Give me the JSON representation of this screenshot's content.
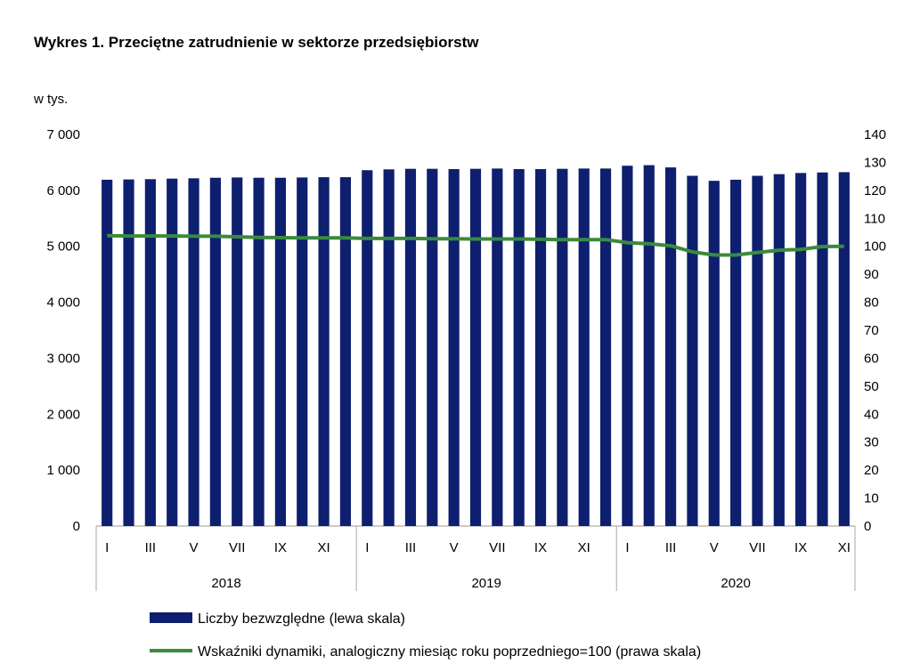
{
  "chart_data": {
    "type": "bar",
    "title": "Wykres 1. Przeciętne zatrudnienie w sektorze przedsiębiorstw",
    "left_axis_unit": "w tys.",
    "categories": [
      "I",
      "II",
      "III",
      "IV",
      "V",
      "VI",
      "VII",
      "VIII",
      "IX",
      "X",
      "XI",
      "XII",
      "I",
      "II",
      "III",
      "IV",
      "V",
      "VI",
      "VII",
      "VIII",
      "IX",
      "X",
      "XI",
      "XII",
      "I",
      "II",
      "III",
      "IV",
      "V",
      "VI",
      "VII",
      "VIII",
      "IX",
      "X",
      "XI"
    ],
    "category_labels": [
      "I",
      "",
      "III",
      "",
      "V",
      "",
      "VII",
      "",
      "IX",
      "",
      "XI",
      "",
      "I",
      "",
      "III",
      "",
      "V",
      "",
      "VII",
      "",
      "IX",
      "",
      "XI",
      "",
      "I",
      "",
      "III",
      "",
      "V",
      "",
      "VII",
      "",
      "IX",
      "",
      "XI"
    ],
    "years": [
      {
        "label": "2018",
        "count": 12
      },
      {
        "label": "2019",
        "count": 12
      },
      {
        "label": "2020",
        "count": 11
      }
    ],
    "series": [
      {
        "name": "Liczby bezwzględne (lewa skala)",
        "type": "bar",
        "axis": "left",
        "color": "#0d1f6e",
        "values": [
          6190,
          6195,
          6200,
          6210,
          6215,
          6225,
          6230,
          6225,
          6225,
          6230,
          6235,
          6235,
          6360,
          6375,
          6385,
          6385,
          6380,
          6385,
          6390,
          6380,
          6380,
          6385,
          6390,
          6390,
          6440,
          6450,
          6410,
          6260,
          6170,
          6190,
          6260,
          6290,
          6310,
          6320,
          6325
        ]
      },
      {
        "name": "Wskaźniki dynamiki, analogiczny miesiąc roku poprzedniego=100 (prawa skala)",
        "type": "line",
        "axis": "right",
        "color": "#3b8a3e",
        "values": [
          103.8,
          103.7,
          103.7,
          103.7,
          103.6,
          103.6,
          103.4,
          103.2,
          103.1,
          103.0,
          103.0,
          103.0,
          102.8,
          102.8,
          102.8,
          102.7,
          102.7,
          102.6,
          102.6,
          102.6,
          102.5,
          102.4,
          102.4,
          102.4,
          101.3,
          100.9,
          100.2,
          98.0,
          96.9,
          96.9,
          97.8,
          98.6,
          98.9,
          99.9,
          100.0
        ]
      }
    ],
    "y_left": {
      "min": 0,
      "max": 7000,
      "ticks": [
        0,
        1000,
        2000,
        3000,
        4000,
        5000,
        6000,
        7000
      ],
      "tick_labels": [
        "0",
        "1 000",
        "2 000",
        "3 000",
        "4 000",
        "5 000",
        "6 000",
        "7 000"
      ]
    },
    "y_right": {
      "min": 0,
      "max": 140,
      "ticks": [
        0,
        10,
        20,
        30,
        40,
        50,
        60,
        70,
        80,
        90,
        100,
        110,
        120,
        130,
        140
      ],
      "tick_labels": [
        "0",
        "10",
        "20",
        "30",
        "40",
        "50",
        "60",
        "70",
        "80",
        "90",
        "100",
        "110",
        "120",
        "130",
        "140"
      ]
    },
    "grid": false,
    "legend_position": "bottom"
  }
}
